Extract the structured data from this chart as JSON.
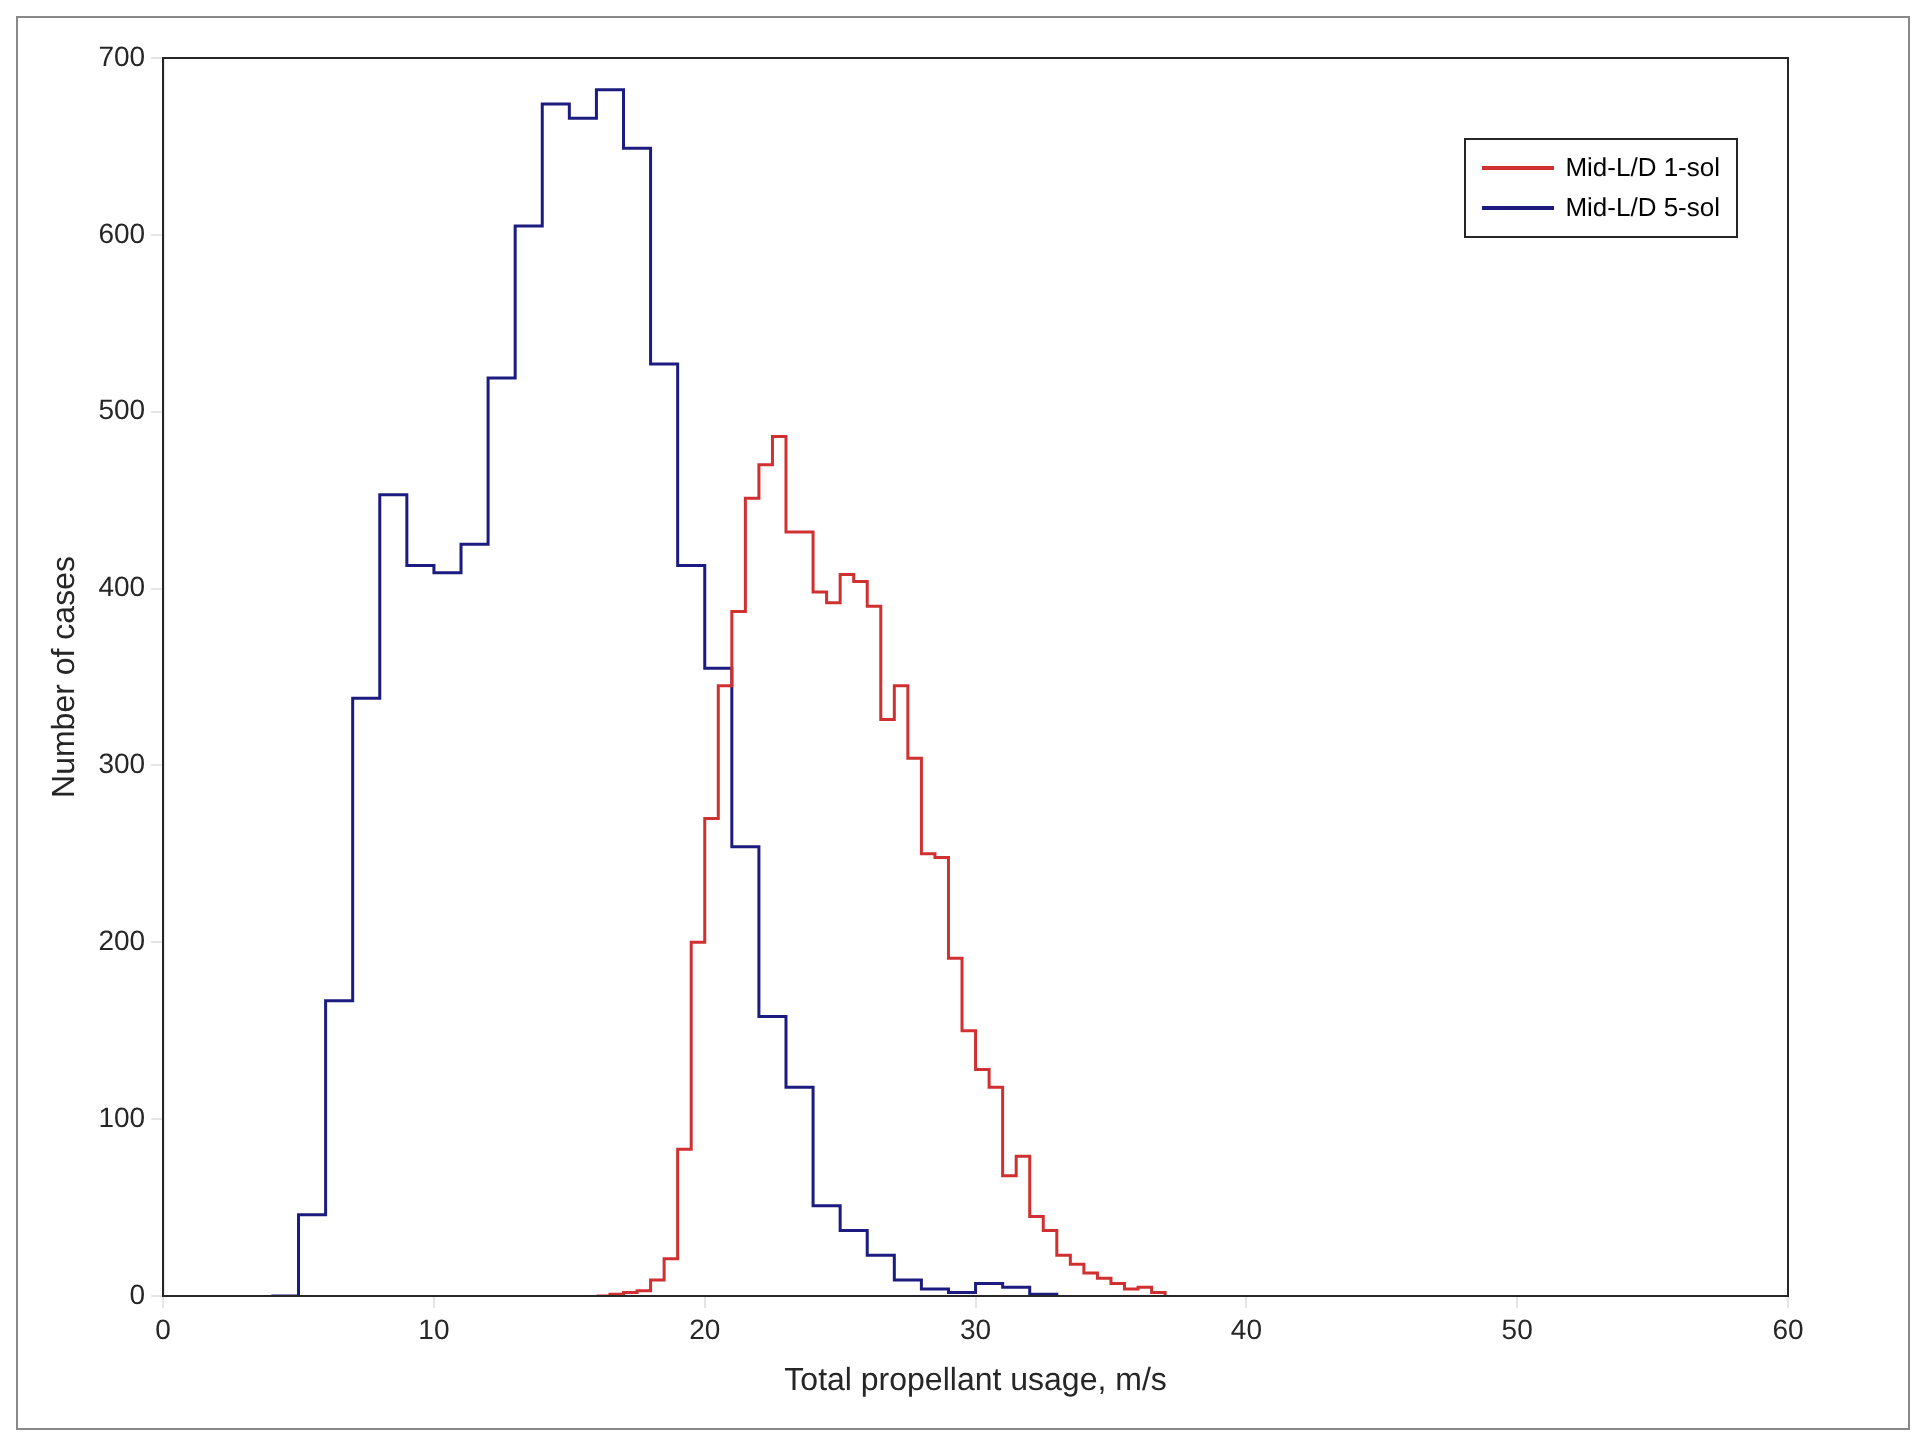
{
  "chart_data": {
    "type": "step",
    "xlabel": "Total propellant usage, m/s",
    "ylabel": "Number of cases",
    "xlim": [
      0,
      60
    ],
    "xticks": [
      0,
      10,
      20,
      30,
      40,
      50,
      60
    ],
    "ylim": [
      0,
      700
    ],
    "yticks": [
      0,
      100,
      200,
      300,
      400,
      500,
      600,
      700
    ],
    "grid": false,
    "legend": "top right",
    "series": [
      {
        "name": "Mid-L/D 1-sol",
        "color": "#d03030",
        "x": [
          16,
          16.5,
          17,
          17.5,
          18,
          18.5,
          19,
          19.5,
          20,
          20.5,
          21,
          21.5,
          22,
          22.5,
          23,
          23.5,
          24,
          24.5,
          25,
          25.5,
          26,
          26.5,
          27,
          27.5,
          28,
          28.5,
          29,
          29.5,
          30,
          30.5,
          31,
          31.5,
          32,
          32.5,
          33,
          33.5,
          34,
          34.5,
          35,
          35.5,
          36,
          36.5,
          37
        ],
        "values": [
          0,
          1,
          2,
          3,
          9,
          21,
          83,
          200,
          270,
          345,
          387,
          451,
          470,
          486,
          432,
          432,
          398,
          392,
          408,
          404,
          390,
          326,
          345,
          304,
          250,
          248,
          191,
          150,
          128,
          118,
          68,
          79,
          45,
          37,
          23,
          18,
          13,
          10,
          7,
          4,
          5,
          2,
          0
        ]
      },
      {
        "name": "Mid-L/D 5-sol",
        "color": "#1c1c80",
        "x": [
          4,
          5,
          6,
          7,
          8,
          9,
          10,
          11,
          12,
          13,
          14,
          15,
          16,
          17,
          18,
          19,
          20,
          21,
          22,
          23,
          24,
          25,
          26,
          27,
          28,
          29,
          30,
          31,
          32,
          33
        ],
        "values": [
          0,
          46,
          167,
          338,
          453,
          413,
          409,
          425,
          519,
          605,
          674,
          666,
          682,
          649,
          527,
          413,
          355,
          254,
          158,
          118,
          51,
          37,
          23,
          9,
          4,
          2,
          7,
          5,
          1,
          0
        ]
      }
    ]
  }
}
